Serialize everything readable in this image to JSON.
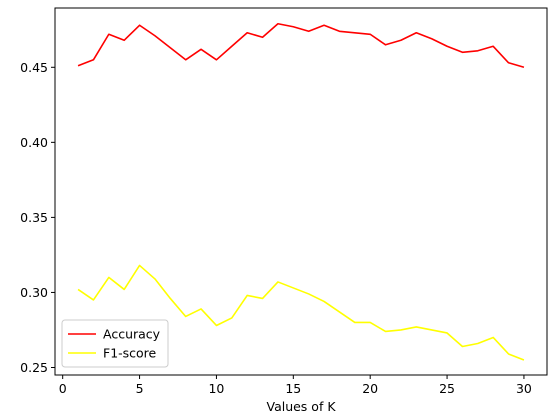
{
  "chart_data": {
    "type": "line",
    "title": "",
    "xlabel": "Values of K",
    "ylabel": "",
    "xlim": [
      -0.5,
      31.5
    ],
    "ylim": [
      0.245,
      0.4895
    ],
    "xticks": [
      0,
      5,
      10,
      15,
      20,
      25,
      30
    ],
    "yticks": [
      0.25,
      0.3,
      0.35,
      0.4,
      0.45
    ],
    "ytick_labels": [
      "0.25",
      "0.30",
      "0.35",
      "0.40",
      "0.45"
    ],
    "grid": false,
    "legend_position": "lower-left",
    "x": [
      1,
      2,
      3,
      4,
      5,
      6,
      7,
      8,
      9,
      10,
      11,
      12,
      13,
      14,
      15,
      16,
      17,
      18,
      19,
      20,
      21,
      22,
      23,
      24,
      25,
      26,
      27,
      28,
      29,
      30
    ],
    "series": [
      {
        "name": "Accuracy",
        "color": "#ff0000",
        "values": [
          0.451,
          0.455,
          0.472,
          0.468,
          0.478,
          0.471,
          0.463,
          0.455,
          0.462,
          0.455,
          0.464,
          0.473,
          0.47,
          0.479,
          0.477,
          0.474,
          0.478,
          0.474,
          0.473,
          0.472,
          0.465,
          0.468,
          0.473,
          0.469,
          0.464,
          0.46,
          0.461,
          0.464,
          0.453,
          0.45
        ]
      },
      {
        "name": "F1-score",
        "color": "#ffff00",
        "values": [
          0.302,
          0.295,
          0.31,
          0.302,
          0.318,
          0.309,
          0.296,
          0.284,
          0.289,
          0.278,
          0.283,
          0.298,
          0.296,
          0.307,
          0.303,
          0.299,
          0.294,
          0.287,
          0.28,
          0.28,
          0.274,
          0.275,
          0.277,
          0.275,
          0.273,
          0.264,
          0.266,
          0.27,
          0.259,
          0.255
        ]
      }
    ]
  }
}
